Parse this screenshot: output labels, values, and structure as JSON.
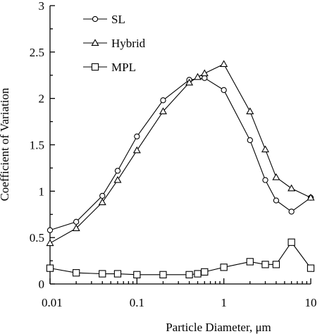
{
  "chart_data": {
    "type": "line",
    "title": "",
    "xlabel": "Particle Diameter, μm",
    "ylabel": "Coefficient of Variation",
    "xscale": "log",
    "xlim": [
      0.01,
      10
    ],
    "ylim": [
      0,
      3
    ],
    "x_ticks": [
      "0.01",
      "0.1",
      "1",
      "10"
    ],
    "y_ticks": [
      "0",
      "0.5",
      "1",
      "1.5",
      "2",
      "2.5",
      "3"
    ],
    "grid": false,
    "legend_position": "top-left",
    "series": [
      {
        "name": "SL",
        "marker": "circle",
        "x": [
          0.01,
          0.02,
          0.04,
          0.06,
          0.1,
          0.2,
          0.4,
          0.6,
          1,
          2,
          3,
          4,
          6,
          10
        ],
        "y": [
          0.58,
          0.67,
          0.95,
          1.22,
          1.59,
          1.98,
          2.2,
          2.22,
          2.09,
          1.55,
          1.12,
          0.9,
          0.78,
          0.93
        ]
      },
      {
        "name": "Hybrid",
        "marker": "triangle",
        "x": [
          0.01,
          0.02,
          0.04,
          0.06,
          0.1,
          0.2,
          0.4,
          0.5,
          0.6,
          1,
          2,
          3,
          4,
          6,
          10
        ],
        "y": [
          0.44,
          0.6,
          0.88,
          1.12,
          1.44,
          1.86,
          2.17,
          2.23,
          2.27,
          2.37,
          1.86,
          1.45,
          1.15,
          1.03,
          0.93
        ]
      },
      {
        "name": "MPL",
        "marker": "square",
        "x": [
          0.01,
          0.02,
          0.04,
          0.06,
          0.1,
          0.2,
          0.4,
          0.5,
          0.6,
          1,
          2,
          3,
          4,
          6,
          10
        ],
        "y": [
          0.17,
          0.12,
          0.11,
          0.11,
          0.1,
          0.1,
          0.1,
          0.11,
          0.13,
          0.18,
          0.24,
          0.21,
          0.21,
          0.45,
          0.17
        ]
      }
    ]
  }
}
